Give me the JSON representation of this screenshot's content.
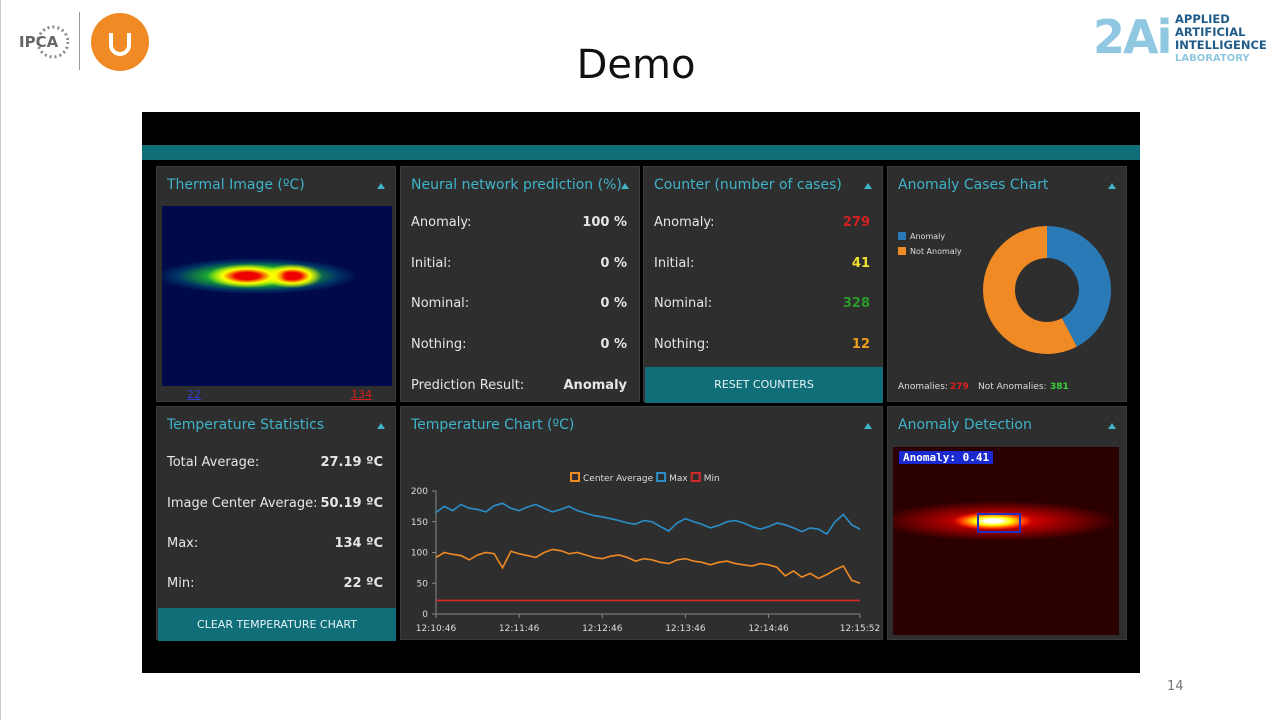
{
  "slide": {
    "title": "Demo",
    "page_number": "14",
    "logo_left": "IPCA",
    "logo_right": {
      "mark": "2Ai",
      "lines": [
        "APPLIED",
        "ARTIFICIAL",
        "INTELLIGENCE",
        "LABORATORY"
      ]
    }
  },
  "dashboard": {
    "thermal_image": {
      "title": "Thermal Image (ºC)",
      "min_label": "22",
      "max_label": "134"
    },
    "prediction": {
      "title": "Neural network prediction (%)",
      "rows": [
        {
          "label": "Anomaly:",
          "value": "100 %"
        },
        {
          "label": "Initial:",
          "value": "0 %"
        },
        {
          "label": "Nominal:",
          "value": "0 %"
        },
        {
          "label": "Nothing:",
          "value": "0 %"
        }
      ],
      "result_label": "Prediction Result:",
      "result": "Anomaly"
    },
    "counter": {
      "title": "Counter (number of cases)",
      "rows": [
        {
          "label": "Anomaly:",
          "value": "279"
        },
        {
          "label": "Initial:",
          "value": "41"
        },
        {
          "label": "Nominal:",
          "value": "328"
        },
        {
          "label": "Nothing:",
          "value": "12"
        }
      ],
      "button": "RESET COUNTERS"
    },
    "anomaly_chart": {
      "type": "pie",
      "title": "Anomaly Cases Chart",
      "donut": true,
      "categories": [
        "Anomaly",
        "Not Anomaly"
      ],
      "values": [
        279,
        381
      ],
      "colors": [
        "#2a7ab8",
        "#f08a24"
      ],
      "footer_labels": [
        "Anomalies:",
        "Not Anomalies:"
      ]
    },
    "temperature_stats": {
      "title": "Temperature Statistics",
      "rows": [
        {
          "label": "Total Average:",
          "value": "27.19 ºC"
        },
        {
          "label": "Image Center Average:",
          "value": "50.19 ºC"
        },
        {
          "label": "Max:",
          "value": "134 ºC"
        },
        {
          "label": "Min:",
          "value": "22 ºC"
        }
      ],
      "button": "CLEAR TEMPERATURE CHART"
    },
    "temperature_chart": {
      "type": "line",
      "title": "Temperature Chart (ºC)",
      "categories": [
        "12:10:46",
        null,
        null,
        null,
        null,
        null,
        null,
        null,
        null,
        null,
        "12:11:46",
        null,
        null,
        null,
        null,
        null,
        null,
        null,
        null,
        null,
        "12:12:46",
        null,
        null,
        null,
        null,
        null,
        null,
        null,
        null,
        null,
        "12:13:46",
        null,
        null,
        null,
        null,
        null,
        null,
        null,
        null,
        null,
        "12:14:46",
        null,
        null,
        null,
        null,
        null,
        null,
        null,
        null,
        null,
        null,
        "12:15:52"
      ],
      "series": [
        {
          "name": "Center Average",
          "color": "#f08a24",
          "values": [
            92,
            100,
            97,
            95,
            88,
            96,
            100,
            98,
            75,
            102,
            98,
            95,
            92,
            100,
            105,
            103,
            98,
            100,
            96,
            92,
            90,
            94,
            96,
            92,
            86,
            90,
            88,
            84,
            82,
            88,
            90,
            86,
            84,
            80,
            84,
            86,
            82,
            80,
            78,
            82,
            80,
            76,
            62,
            70,
            60,
            66,
            58,
            64,
            72,
            78,
            55,
            50
          ]
        },
        {
          "name": "Max",
          "color": "#2a8fc9",
          "values": [
            165,
            175,
            168,
            178,
            172,
            170,
            166,
            176,
            180,
            172,
            168,
            174,
            178,
            172,
            166,
            170,
            175,
            168,
            164,
            160,
            158,
            155,
            152,
            148,
            146,
            152,
            150,
            142,
            135,
            148,
            155,
            150,
            146,
            140,
            144,
            150,
            152,
            148,
            142,
            138,
            142,
            148,
            145,
            140,
            134,
            140,
            138,
            130,
            150,
            162,
            145,
            138
          ]
        },
        {
          "name": "Min",
          "color": "#d42a2a",
          "values": [
            22,
            22,
            22,
            22,
            22,
            22,
            22,
            22,
            22,
            22,
            22,
            22,
            22,
            22,
            22,
            22,
            22,
            22,
            22,
            22,
            22,
            22,
            22,
            22,
            22,
            22,
            22,
            22,
            22,
            22,
            22,
            22,
            22,
            22,
            22,
            22,
            22,
            22,
            22,
            22,
            22,
            22,
            22,
            22,
            22,
            22,
            22,
            22,
            22,
            22,
            22,
            22
          ]
        }
      ],
      "ylim": [
        0,
        200
      ],
      "yticks": [
        0,
        50,
        100,
        150,
        200
      ]
    },
    "anomaly_detection": {
      "title": "Anomaly Detection",
      "overlay": "Anomaly: 0.41"
    }
  }
}
